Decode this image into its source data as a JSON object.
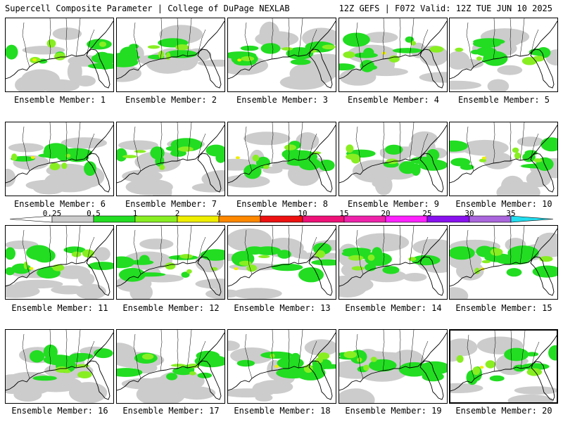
{
  "header": {
    "left": "Supercell Composite Parameter | College of DuPage NEXLAB",
    "right": "12Z GEFS | F072 Valid: 12Z TUE JUN 10 2025"
  },
  "panels": [
    {
      "label": "Ensemble Member: 1"
    },
    {
      "label": "Ensemble Member: 2"
    },
    {
      "label": "Ensemble Member: 3"
    },
    {
      "label": "Ensemble Member: 4"
    },
    {
      "label": "Ensemble Member: 5"
    },
    {
      "label": "Ensemble Member: 6"
    },
    {
      "label": "Ensemble Member: 7"
    },
    {
      "label": "Ensemble Member: 8"
    },
    {
      "label": "Ensemble Member: 9"
    },
    {
      "label": "Ensemble Member: 10"
    },
    {
      "label": "Ensemble Member: 11"
    },
    {
      "label": "Ensemble Member: 12"
    },
    {
      "label": "Ensemble Member: 13"
    },
    {
      "label": "Ensemble Member: 14"
    },
    {
      "label": "Ensemble Member: 15"
    },
    {
      "label": "Ensemble Member: 16"
    },
    {
      "label": "Ensemble Member: 17"
    },
    {
      "label": "Ensemble Member: 18"
    },
    {
      "label": "Ensemble Member: 19"
    },
    {
      "label": "Ensemble Member: 20"
    }
  ],
  "colorbar": {
    "labels": [
      "0.25",
      "0.5",
      "1",
      "2",
      "4",
      "7",
      "10",
      "15",
      "20",
      "25",
      "30",
      "35"
    ],
    "colors": [
      "#cccccc",
      "#22dd22",
      "#88ee22",
      "#eeee00",
      "#ff8800",
      "#ee1111",
      "#ee1177",
      "#ee22aa",
      "#ff22ff",
      "#8811ee",
      "#aa66dd",
      "#22ddee"
    ]
  }
}
